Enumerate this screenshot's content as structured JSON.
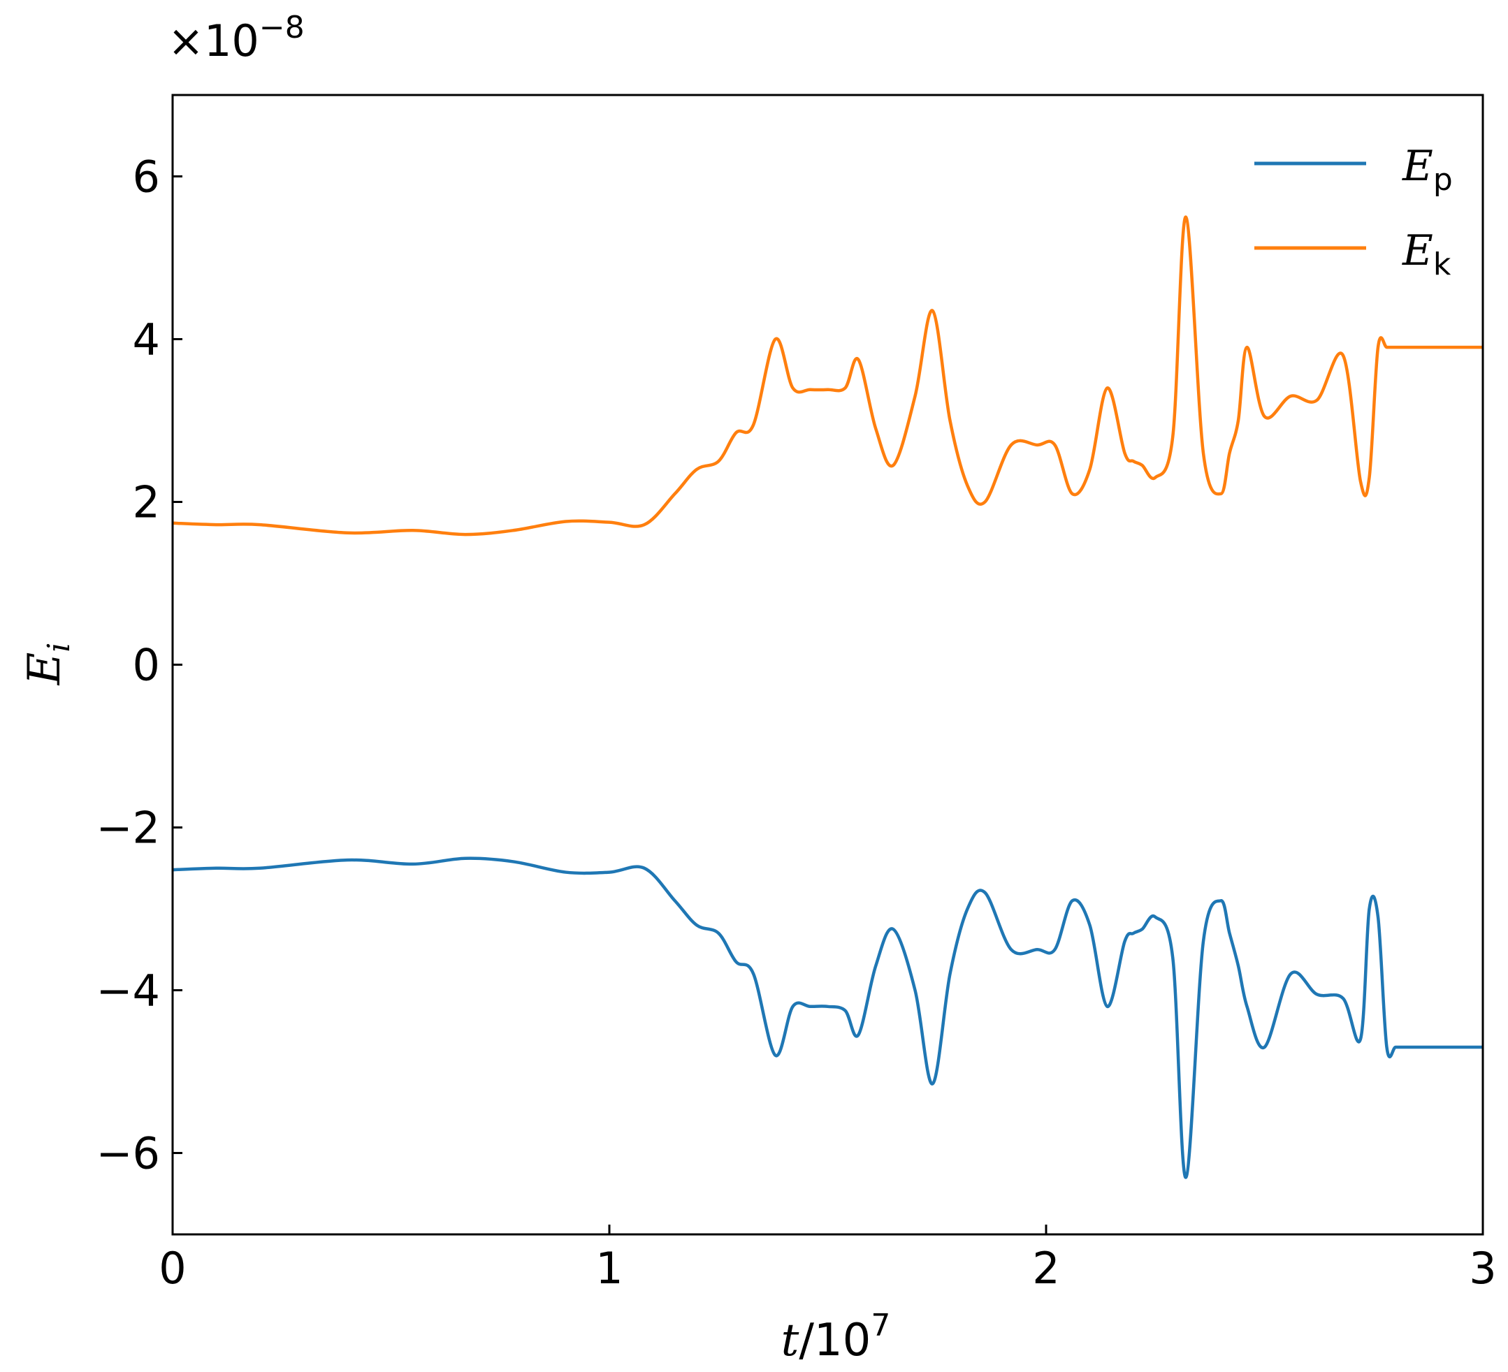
{
  "chart_data": {
    "type": "line",
    "title": "",
    "offset_text": {
      "prefix": "×10",
      "exponent": "−8"
    },
    "xlabel": {
      "var": "t",
      "sep": "/10",
      "exp": "7"
    },
    "ylabel": {
      "var": "E",
      "sub": "i"
    },
    "xlim": [
      0,
      3
    ],
    "ylim": [
      -7,
      7
    ],
    "xticks": [
      0,
      1,
      2,
      3
    ],
    "xtick_labels": [
      "0",
      "1",
      "2",
      "3"
    ],
    "yticks": [
      -6,
      -4,
      -2,
      0,
      2,
      4,
      6
    ],
    "ytick_labels": [
      "−6",
      "−4",
      "−2",
      "0",
      "2",
      "4",
      "6"
    ],
    "grid": false,
    "legend_position": "top-right",
    "series": [
      {
        "name": {
          "var": "E",
          "sub": "p"
        },
        "color": "#1f77b4",
        "x": [
          0,
          0.1,
          0.2,
          0.4,
          0.55,
          0.67,
          0.78,
          0.9,
          1.0,
          1.08,
          1.15,
          1.2,
          1.25,
          1.29,
          1.33,
          1.38,
          1.42,
          1.46,
          1.5,
          1.54,
          1.57,
          1.61,
          1.65,
          1.7,
          1.74,
          1.78,
          1.82,
          1.86,
          1.92,
          1.98,
          2.02,
          2.06,
          2.1,
          2.14,
          2.18,
          2.2,
          2.22,
          2.25,
          2.29,
          2.32,
          2.36,
          2.4,
          2.42,
          2.44,
          2.46,
          2.5,
          2.56,
          2.62,
          2.68,
          2.72,
          2.74,
          2.76,
          2.78,
          2.8,
          2.82,
          2.84,
          2.86,
          2.88,
          2.92,
          2.96,
          3.0
        ],
        "y": [
          -2.52,
          -2.5,
          -2.5,
          -2.4,
          -2.45,
          -2.38,
          -2.42,
          -2.55,
          -2.55,
          -2.5,
          -2.9,
          -3.2,
          -3.3,
          -3.65,
          -3.8,
          -4.8,
          -4.2,
          -4.2,
          -4.2,
          -4.25,
          -4.55,
          -3.7,
          -3.25,
          -4.0,
          -5.15,
          -3.8,
          -3.0,
          -2.8,
          -3.5,
          -3.5,
          -3.5,
          -2.9,
          -3.2,
          -4.2,
          -3.4,
          -3.3,
          -3.25,
          -3.1,
          -3.6,
          -6.3,
          -3.4,
          -2.9,
          -3.3,
          -3.7,
          -4.2,
          -4.7,
          -3.8,
          -4.05,
          -4.1,
          -4.6,
          -3.0,
          -3.1,
          -4.7,
          -4.7,
          -4.7,
          -4.7,
          -4.7,
          -4.7,
          -4.7,
          -4.7,
          -4.7
        ]
      },
      {
        "name": {
          "var": "E",
          "sub": "k"
        },
        "color": "#ff7f0e",
        "x": [
          0,
          0.1,
          0.2,
          0.4,
          0.55,
          0.67,
          0.78,
          0.9,
          1.0,
          1.08,
          1.15,
          1.2,
          1.25,
          1.29,
          1.33,
          1.38,
          1.42,
          1.46,
          1.5,
          1.54,
          1.57,
          1.61,
          1.65,
          1.7,
          1.74,
          1.78,
          1.82,
          1.86,
          1.92,
          1.98,
          2.02,
          2.06,
          2.1,
          2.14,
          2.18,
          2.2,
          2.22,
          2.25,
          2.29,
          2.32,
          2.36,
          2.4,
          2.42,
          2.44,
          2.46,
          2.5,
          2.56,
          2.62,
          2.68,
          2.72,
          2.74,
          2.76,
          2.78,
          2.8,
          2.82,
          2.84,
          2.86,
          2.88,
          2.92,
          2.96,
          3.0
        ],
        "y": [
          1.74,
          1.72,
          1.72,
          1.62,
          1.65,
          1.6,
          1.65,
          1.76,
          1.75,
          1.72,
          2.1,
          2.4,
          2.5,
          2.85,
          2.95,
          4.0,
          3.4,
          3.38,
          3.38,
          3.4,
          3.75,
          2.9,
          2.45,
          3.3,
          4.35,
          3.0,
          2.2,
          2.0,
          2.7,
          2.7,
          2.7,
          2.1,
          2.4,
          3.4,
          2.6,
          2.5,
          2.45,
          2.3,
          2.8,
          5.5,
          2.6,
          2.1,
          2.6,
          3.0,
          3.9,
          3.05,
          3.3,
          3.25,
          3.8,
          2.25,
          2.3,
          3.9,
          3.9,
          3.9,
          3.9,
          3.9,
          3.9,
          3.9,
          3.9,
          3.9,
          3.9
        ]
      }
    ]
  }
}
